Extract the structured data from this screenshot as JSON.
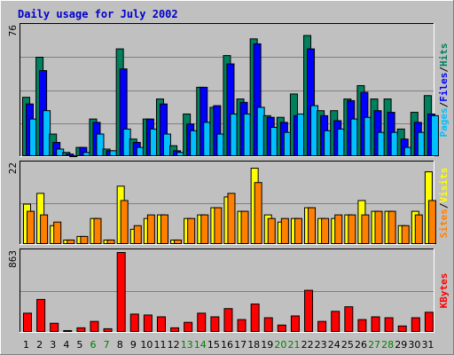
{
  "chart_data": [
    {
      "type": "bar",
      "title": "Daily usage for July 2002",
      "panel": "hits-files-pages",
      "ymax_label": "76",
      "ylim": [
        0,
        76
      ],
      "grid": true,
      "legend_placement": "right-vertical",
      "categories": [
        "1",
        "2",
        "3",
        "4",
        "5",
        "6",
        "7",
        "8",
        "9",
        "10",
        "11",
        "12",
        "13",
        "14",
        "15",
        "16",
        "17",
        "18",
        "19",
        "20",
        "21",
        "22",
        "23",
        "24",
        "25",
        "26",
        "27",
        "28",
        "29",
        "30",
        "31"
      ],
      "series": [
        {
          "name": "Hits",
          "color": "#00805c",
          "values": [
            35,
            59,
            13,
            2,
            5,
            22,
            4,
            64,
            10,
            22,
            34,
            6,
            25,
            41,
            29,
            60,
            34,
            70,
            24,
            23,
            37,
            72,
            27,
            27,
            34,
            42,
            34,
            34,
            16,
            26,
            36
          ]
        },
        {
          "name": "Files",
          "color": "#0000ff",
          "values": [
            31,
            51,
            8,
            1,
            5,
            20,
            3,
            52,
            8,
            22,
            31,
            3,
            19,
            41,
            30,
            55,
            32,
            67,
            23,
            20,
            24,
            64,
            24,
            21,
            33,
            38,
            27,
            26,
            10,
            20,
            25
          ]
        },
        {
          "name": "Pages",
          "color": "#00c0ff",
          "values": [
            22,
            27,
            4,
            0,
            2,
            13,
            3,
            16,
            5,
            16,
            13,
            2,
            15,
            20,
            13,
            25,
            25,
            29,
            17,
            14,
            25,
            30,
            15,
            16,
            22,
            23,
            14,
            14,
            5,
            14,
            24
          ]
        }
      ]
    },
    {
      "type": "bar",
      "panel": "visits-sites",
      "ymax_label": "22",
      "ylim": [
        0,
        22
      ],
      "grid": true,
      "legend_placement": "right-vertical",
      "categories": [
        "1",
        "2",
        "3",
        "4",
        "5",
        "6",
        "7",
        "8",
        "9",
        "10",
        "11",
        "12",
        "13",
        "14",
        "15",
        "16",
        "17",
        "18",
        "19",
        "20",
        "21",
        "22",
        "23",
        "24",
        "25",
        "26",
        "27",
        "28",
        "29",
        "30",
        "31"
      ],
      "series": [
        {
          "name": "Visits",
          "color": "#ffff00",
          "values": [
            11,
            14,
            5,
            1,
            2,
            7,
            1,
            16,
            4,
            7,
            8,
            1,
            7,
            8,
            10,
            13,
            9,
            21,
            8,
            6,
            7,
            10,
            7,
            7,
            8,
            12,
            9,
            9,
            5,
            9,
            20
          ]
        },
        {
          "name": "Sites",
          "color": "#ff8000",
          "values": [
            9,
            8,
            6,
            1,
            2,
            7,
            1,
            12,
            5,
            8,
            8,
            1,
            7,
            8,
            10,
            14,
            9,
            17,
            7,
            7,
            7,
            10,
            7,
            8,
            8,
            8,
            9,
            9,
            5,
            8,
            12
          ]
        }
      ]
    },
    {
      "type": "bar",
      "panel": "kbytes",
      "ymax_label": "863",
      "ylim": [
        0,
        863
      ],
      "grid": true,
      "legend_placement": "right-vertical",
      "categories": [
        "1",
        "2",
        "3",
        "4",
        "5",
        "6",
        "7",
        "8",
        "9",
        "10",
        "11",
        "12",
        "13",
        "14",
        "15",
        "16",
        "17",
        "18",
        "19",
        "20",
        "21",
        "22",
        "23",
        "24",
        "25",
        "26",
        "27",
        "28",
        "29",
        "30",
        "31"
      ],
      "series": [
        {
          "name": "KBytes",
          "color": "#ff0000",
          "values": [
            200,
            350,
            90,
            10,
            40,
            110,
            30,
            863,
            190,
            180,
            160,
            40,
            100,
            200,
            160,
            250,
            130,
            300,
            150,
            70,
            170,
            450,
            110,
            220,
            270,
            130,
            160,
            150,
            60,
            150,
            210
          ]
        }
      ]
    }
  ],
  "side_labels": {
    "top": [
      {
        "text": "Pages",
        "color": "#00c0ff"
      },
      {
        "text": "/",
        "color": "#000000"
      },
      {
        "text": "Files",
        "color": "#0000ff"
      },
      {
        "text": "/",
        "color": "#000000"
      },
      {
        "text": "Hits",
        "color": "#00805c"
      }
    ],
    "middle": [
      {
        "text": "Sites",
        "color": "#ff8000"
      },
      {
        "text": "/",
        "color": "#000000"
      },
      {
        "text": "Visits",
        "color": "#ffff00"
      }
    ],
    "bottom": [
      {
        "text": "KBytes",
        "color": "#ff0000"
      }
    ]
  },
  "weekend_days": [
    "6",
    "7",
    "13",
    "14",
    "20",
    "21",
    "27",
    "28"
  ],
  "colors": {
    "plot_background": "#c0c0c0",
    "frame": "#c0c0c0",
    "grid": "#808080",
    "weekday_label": "#000000",
    "weekend_label": "#008000"
  }
}
